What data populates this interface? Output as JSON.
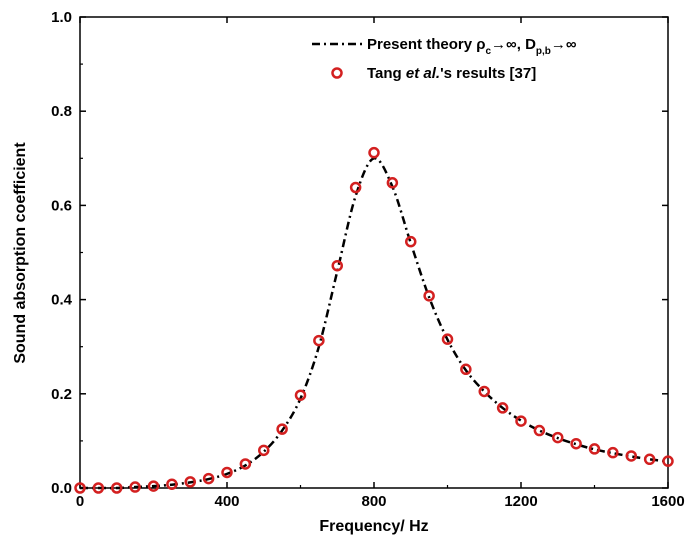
{
  "chart_data": {
    "type": "line",
    "xlabel": "Frequency/ Hz",
    "ylabel": "Sound absorption coefficient",
    "xlim": [
      0,
      1600
    ],
    "ylim": [
      0,
      1.0
    ],
    "x_ticks": [
      "0",
      "400",
      "800",
      "1200",
      "1600"
    ],
    "y_ticks": [
      "0.0",
      "0.2",
      "0.4",
      "0.6",
      "0.8",
      "1.0"
    ],
    "legend": {
      "placement": "top-right",
      "line_text_main": "Present theory ρ",
      "line_sub1": "c",
      "line_text_mid": "→∞, D",
      "line_sub2": "p,b",
      "line_text_end": "→∞",
      "marker_text_pre": "Tang ",
      "marker_text_ital": "et al.",
      "marker_text_post": "'s results [37]"
    },
    "series": [
      {
        "style": "dash-dot",
        "color": "#000000",
        "x": [
          0,
          50,
          100,
          150,
          200,
          250,
          300,
          350,
          400,
          450,
          500,
          550,
          600,
          650,
          700,
          750,
          800,
          850,
          900,
          950,
          1000,
          1050,
          1100,
          1150,
          1200,
          1250,
          1300,
          1350,
          1400,
          1450,
          1500,
          1550,
          1600
        ],
        "y": [
          0.0,
          0.0,
          0.0,
          0.002,
          0.004,
          0.007,
          0.012,
          0.019,
          0.03,
          0.048,
          0.077,
          0.122,
          0.19,
          0.3,
          0.46,
          0.62,
          0.7,
          0.64,
          0.52,
          0.405,
          0.315,
          0.25,
          0.205,
          0.17,
          0.143,
          0.122,
          0.106,
          0.093,
          0.082,
          0.074,
          0.067,
          0.061,
          0.056
        ]
      },
      {
        "style": "open-circle",
        "color": "#d32020",
        "x": [
          0,
          50,
          100,
          150,
          200,
          250,
          300,
          350,
          400,
          450,
          500,
          550,
          600,
          650,
          700,
          750,
          800,
          850,
          900,
          950,
          1000,
          1050,
          1100,
          1150,
          1200,
          1250,
          1300,
          1350,
          1400,
          1450,
          1500,
          1550,
          1600
        ],
        "y": [
          0.0,
          0.0,
          0.0,
          0.002,
          0.004,
          0.008,
          0.013,
          0.02,
          0.033,
          0.051,
          0.08,
          0.125,
          0.197,
          0.313,
          0.472,
          0.638,
          0.712,
          0.648,
          0.523,
          0.408,
          0.316,
          0.252,
          0.205,
          0.17,
          0.142,
          0.122,
          0.107,
          0.094,
          0.083,
          0.075,
          0.068,
          0.061,
          0.057
        ]
      }
    ]
  }
}
